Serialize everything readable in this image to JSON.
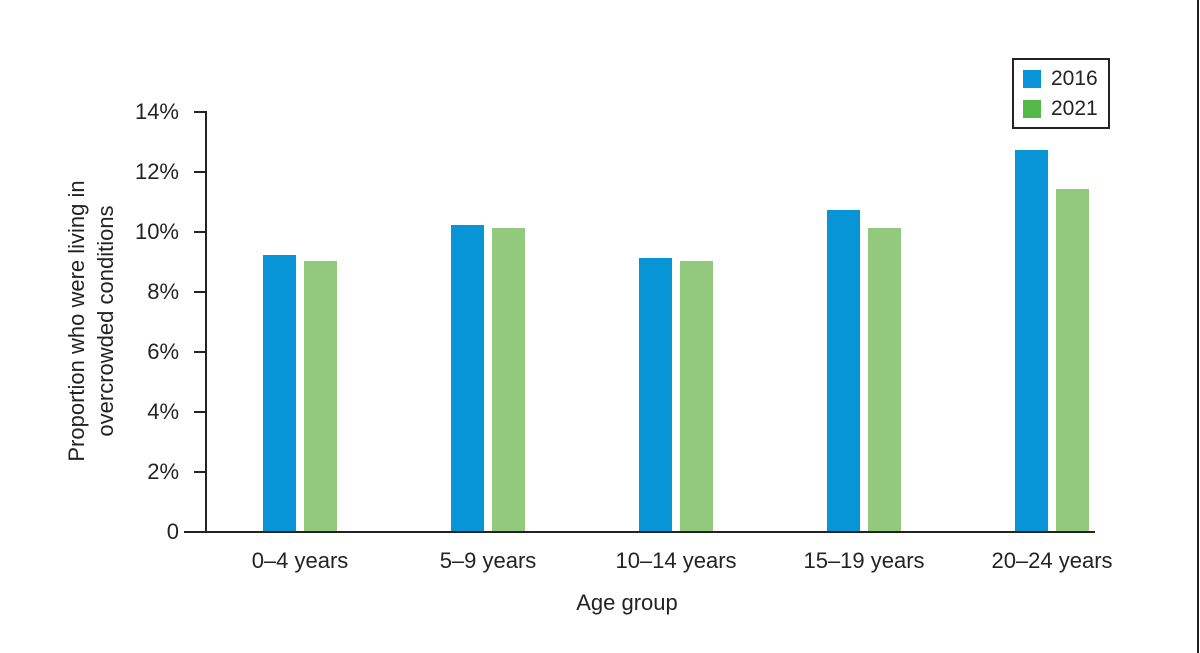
{
  "chart_data": {
    "type": "bar",
    "title": "",
    "xlabel": "Age group",
    "ylabel": "Proportion who were living in overcrowded conditions",
    "ylabel_lines": [
      "Proportion who were living in",
      "overcrowded conditions"
    ],
    "categories": [
      "0–4 years",
      "5–9 years",
      "10–14 years",
      "15–19 years",
      "20–24 years"
    ],
    "series": [
      {
        "name": "2016",
        "color": "#0795d8",
        "legend_color": "#0795d8",
        "values": [
          9.2,
          10.2,
          9.1,
          10.7,
          12.7
        ]
      },
      {
        "name": "2021",
        "color": "#92c97c",
        "legend_color": "#54b948",
        "values": [
          9.0,
          10.1,
          9.0,
          10.1,
          11.4
        ]
      }
    ],
    "ylim": [
      0,
      14
    ],
    "ytick_step": 2,
    "ytick_labels": [
      "0",
      "2%",
      "4%",
      "6%",
      "8%",
      "10%",
      "12%",
      "14%"
    ],
    "grid": false,
    "legend_position": "top-right",
    "axis_color": "#232323",
    "text_color": "#232323"
  }
}
